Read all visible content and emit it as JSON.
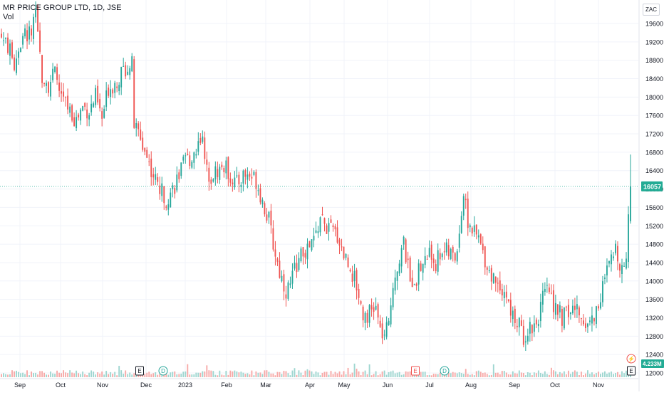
{
  "legend": {
    "symbol": "MR PRICE GROUP LTD, 1D, JSE",
    "volume_label": "Vol"
  },
  "currency": "ZAC",
  "colors": {
    "up": "#26a69a",
    "down": "#ef5350",
    "up_vol": "#9ed6d0",
    "down_vol": "#f7a9a7",
    "grid": "#f0f3fa",
    "axis_text": "#131722",
    "last_price": "#22ab94"
  },
  "price_axis": {
    "last_price_label": "16057",
    "last_volume_label": "4.233M"
  },
  "chart_data": {
    "type": "candlestick",
    "title": "MR PRICE GROUP LTD, 1D, JSE",
    "ylim": [
      11900,
      20250
    ],
    "y_ticks": [
      12000,
      12400,
      12800,
      13200,
      13600,
      14000,
      14400,
      14800,
      15200,
      15600,
      16000,
      16400,
      16800,
      17200,
      17600,
      18000,
      18400,
      18800,
      19200,
      19600
    ],
    "x_ticks": [
      "Sep",
      "Oct",
      "Nov",
      "Dec",
      "2023",
      "Feb",
      "Mar",
      "Apr",
      "May",
      "Jun",
      "Jul",
      "Aug",
      "Sep",
      "Oct",
      "Nov"
    ],
    "last_price": 16057,
    "last_volume": "4.233M",
    "events": [
      {
        "type": "earnings",
        "label": "E",
        "near": "Dec"
      },
      {
        "type": "dividend",
        "label": "D",
        "near": "Dec"
      },
      {
        "type": "earnings",
        "label": "E",
        "near": "Jun"
      },
      {
        "type": "dividend",
        "label": "D",
        "near": "Jul"
      },
      {
        "type": "earnings",
        "label": "E",
        "near": "Nov"
      },
      {
        "type": "split",
        "label": "⚡",
        "near": "Nov"
      }
    ],
    "close_keypoints": [
      [
        0,
        19300
      ],
      [
        3,
        19100
      ],
      [
        6,
        18700
      ],
      [
        8,
        19100
      ],
      [
        11,
        19350
      ],
      [
        14,
        19400
      ],
      [
        16,
        19700
      ],
      [
        19,
        18500
      ],
      [
        22,
        18300
      ],
      [
        25,
        18500
      ],
      [
        28,
        18000
      ],
      [
        32,
        17700
      ],
      [
        35,
        17500
      ],
      [
        38,
        17800
      ],
      [
        41,
        17700
      ],
      [
        44,
        18000
      ],
      [
        47,
        17500
      ],
      [
        50,
        18200
      ],
      [
        53,
        18300
      ],
      [
        56,
        18500
      ],
      [
        59,
        18700
      ],
      [
        61,
        18700
      ],
      [
        62,
        17400
      ],
      [
        65,
        17100
      ],
      [
        68,
        16700
      ],
      [
        71,
        16300
      ],
      [
        74,
        16000
      ],
      [
        77,
        15800
      ],
      [
        80,
        16000
      ],
      [
        83,
        16300
      ],
      [
        86,
        16600
      ],
      [
        89,
        16700
      ],
      [
        92,
        17000
      ],
      [
        94,
        17300
      ],
      [
        95,
        16500
      ],
      [
        98,
        16300
      ],
      [
        101,
        16400
      ],
      [
        104,
        16500
      ],
      [
        107,
        16300
      ],
      [
        110,
        16100
      ],
      [
        113,
        16300
      ],
      [
        116,
        16300
      ],
      [
        119,
        16200
      ],
      [
        121,
        15900
      ],
      [
        123,
        15600
      ],
      [
        125,
        15300
      ],
      [
        127,
        14800
      ],
      [
        130,
        14200
      ],
      [
        133,
        13800
      ],
      [
        135,
        13900
      ],
      [
        138,
        14400
      ],
      [
        141,
        14600
      ],
      [
        144,
        14700
      ],
      [
        147,
        15000
      ],
      [
        149,
        15400
      ],
      [
        151,
        15200
      ],
      [
        154,
        15100
      ],
      [
        157,
        15000
      ],
      [
        160,
        14600
      ],
      [
        163,
        14300
      ],
      [
        166,
        13900
      ],
      [
        169,
        13300
      ],
      [
        172,
        13300
      ],
      [
        175,
        13400
      ],
      [
        177,
        12900
      ],
      [
        179,
        12800
      ],
      [
        181,
        13000
      ],
      [
        183,
        14000
      ],
      [
        186,
        14500
      ],
      [
        188,
        14800
      ],
      [
        191,
        14000
      ],
      [
        194,
        14100
      ],
      [
        197,
        14400
      ],
      [
        200,
        14600
      ],
      [
        203,
        14400
      ],
      [
        206,
        14700
      ],
      [
        209,
        14600
      ],
      [
        212,
        14500
      ],
      [
        214,
        15100
      ],
      [
        216,
        15900
      ],
      [
        218,
        15300
      ],
      [
        220,
        15100
      ],
      [
        223,
        14900
      ],
      [
        226,
        14500
      ],
      [
        229,
        14100
      ],
      [
        232,
        14000
      ],
      [
        235,
        13800
      ],
      [
        238,
        13300
      ],
      [
        241,
        13100
      ],
      [
        244,
        12800
      ],
      [
        247,
        13000
      ],
      [
        250,
        13100
      ],
      [
        253,
        13600
      ],
      [
        256,
        13800
      ],
      [
        259,
        13400
      ],
      [
        262,
        13200
      ],
      [
        265,
        13300
      ],
      [
        268,
        13400
      ],
      [
        271,
        13200
      ],
      [
        274,
        13100
      ],
      [
        277,
        13200
      ],
      [
        280,
        13700
      ],
      [
        283,
        14200
      ],
      [
        285,
        14400
      ],
      [
        287,
        14700
      ],
      [
        290,
        14300
      ],
      [
        292,
        14500
      ],
      [
        293,
        15500
      ],
      [
        294,
        16057
      ]
    ]
  }
}
